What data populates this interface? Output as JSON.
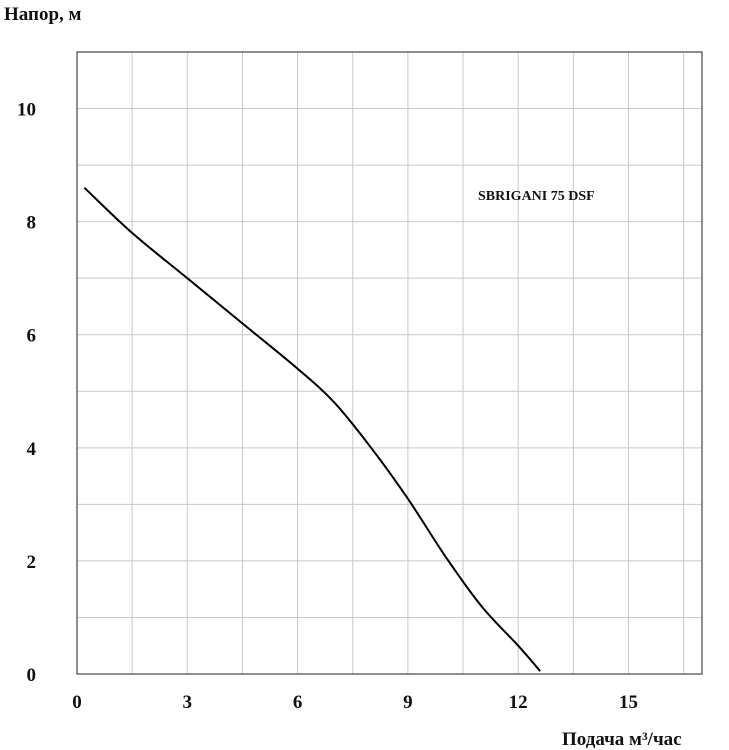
{
  "chart_data": {
    "type": "line",
    "title": "",
    "ylabel": "Напор, м",
    "xlabel": "Подача  м³/час",
    "xlim": [
      0,
      17
    ],
    "ylim": [
      0,
      11
    ],
    "xticks": [
      0,
      3,
      6,
      9,
      12,
      15
    ],
    "yticks": [
      0,
      2,
      4,
      6,
      8,
      10
    ],
    "grid": true,
    "annotation": "SBRIGANI 75 DSF",
    "series": [
      {
        "color": "#000000",
        "points": [
          [
            0.2,
            8.6
          ],
          [
            1.5,
            7.8
          ],
          [
            3.0,
            7.0
          ],
          [
            4.5,
            6.2
          ],
          [
            6.0,
            5.4
          ],
          [
            7.0,
            4.8
          ],
          [
            8.0,
            4.0
          ],
          [
            9.0,
            3.1
          ],
          [
            10.0,
            2.1
          ],
          [
            11.0,
            1.2
          ],
          [
            12.0,
            0.5
          ],
          [
            12.6,
            0.05
          ]
        ]
      }
    ]
  }
}
